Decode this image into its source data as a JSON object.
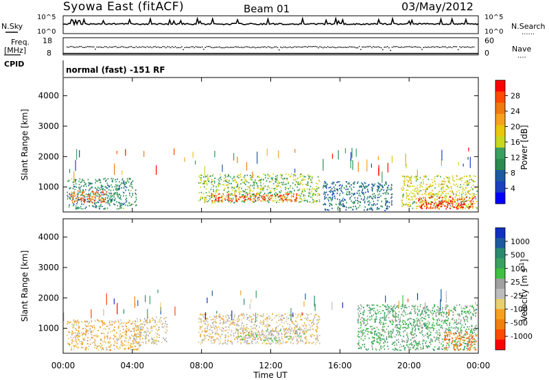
{
  "header": {
    "station": "Syowa East (fitACF)",
    "beam": "Beam 01",
    "date": "03/May/2012"
  },
  "noise_panel": {
    "left_label": "N.Sky",
    "right_label": "N.Search",
    "right_style": "......",
    "left_ticks": [
      "10^5",
      "10^0"
    ],
    "right_ticks": [
      "10^5",
      "10^0"
    ]
  },
  "freq_panel": {
    "left_label_top": "Freq.",
    "left_label_unit": "[MHz]",
    "left_ticks": [
      "18",
      "8"
    ],
    "right_label": "Nave",
    "right_style": "....",
    "right_ticks": [
      "60",
      "0"
    ],
    "cpid_label": "CPID",
    "cpid_text": "normal (fast) -151 RF"
  },
  "power_panel": {
    "ylabel": "Slant Range [km]",
    "cbar_label": "Power [dB]",
    "cbar_ticks": [
      "28",
      "24",
      "20",
      "16",
      "12",
      "8",
      "4"
    ],
    "cbar_colors": [
      "#ff0000",
      "#ff4a00",
      "#f07a10",
      "#f7a020",
      "#e8c80a",
      "#c8d820",
      "#3aa060",
      "#2a8a50",
      "#1c5aa0",
      "#1a40c0",
      "#0000ff"
    ]
  },
  "velocity_panel": {
    "ylabel": "Slant Range [km]",
    "cbar_label": "Velocity [m s^-1]",
    "cbar_ticks": [
      "1000",
      "500",
      "100",
      "25",
      "-25",
      "-100",
      "-500",
      "-1000"
    ],
    "cbar_colors": [
      "#1030c0",
      "#1c5aa0",
      "#2a8a70",
      "#3aa060",
      "#40c040",
      "#a0a0a0",
      "#bcbcbc",
      "#e8d070",
      "#f5a020",
      "#f08010",
      "#ff4a00",
      "#ff0000"
    ]
  },
  "x_axis": {
    "label": "Time UT",
    "ticks": [
      "00:00",
      "04:00",
      "08:00",
      "12:00",
      "16:00",
      "20:00",
      "00:00"
    ]
  },
  "chart_data": [
    {
      "type": "heatmap",
      "title": "",
      "xlabel": "Time UT",
      "ylabel": "Slant Range [km]",
      "xlim": [
        0,
        24
      ],
      "ylim": [
        180,
        4600
      ],
      "y_ticks": [
        1000,
        2000,
        3000,
        4000
      ],
      "colorbar": {
        "label": "Power [dB]",
        "range": [
          0,
          30
        ]
      },
      "regions": [
        {
          "t0": 0.2,
          "t1": 4.2,
          "r0": 300,
          "r1": 1300,
          "value": 10
        },
        {
          "t0": 0.4,
          "t1": 2.5,
          "r0": 500,
          "r1": 900,
          "value": 24
        },
        {
          "t0": 7.8,
          "t1": 14.8,
          "r0": 500,
          "r1": 1450,
          "value": 14
        },
        {
          "t0": 8.5,
          "t1": 13.5,
          "r0": 550,
          "r1": 800,
          "value": 26
        },
        {
          "t0": 15.0,
          "t1": 19.0,
          "r0": 250,
          "r1": 1200,
          "value": 8
        },
        {
          "t0": 19.5,
          "t1": 23.9,
          "r0": 300,
          "r1": 1400,
          "value": 16
        },
        {
          "t0": 20.5,
          "t1": 23.8,
          "r0": 300,
          "r1": 700,
          "value": 28
        }
      ]
    },
    {
      "type": "heatmap",
      "title": "",
      "xlabel": "Time UT",
      "ylabel": "Slant Range [km]",
      "xlim": [
        0,
        24
      ],
      "ylim": [
        180,
        4600
      ],
      "y_ticks": [
        1000,
        2000,
        3000,
        4000
      ],
      "colorbar": {
        "label": "Velocity [m s^-1]",
        "range": [
          -1000,
          1000
        ]
      },
      "regions": [
        {
          "t0": 0.2,
          "t1": 4.5,
          "r0": 300,
          "r1": 1300,
          "value": -300
        },
        {
          "t0": 4.0,
          "t1": 6.0,
          "r0": 500,
          "r1": 1400,
          "value": -150
        },
        {
          "t0": 7.8,
          "t1": 14.8,
          "r0": 500,
          "r1": 1500,
          "value": -200
        },
        {
          "t0": 10.0,
          "t1": 14.0,
          "r0": 600,
          "r1": 1000,
          "value": 0
        },
        {
          "t0": 17.0,
          "t1": 23.9,
          "r0": 300,
          "r1": 1800,
          "value": 300
        },
        {
          "t0": 22.0,
          "t1": 23.9,
          "r0": 300,
          "r1": 900,
          "value": -600
        }
      ]
    }
  ]
}
